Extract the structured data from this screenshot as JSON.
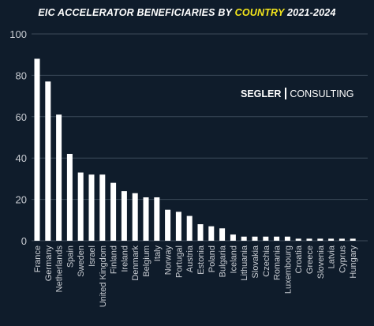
{
  "title": {
    "part1": "EIC ACCELERATOR BENEFICIARIES BY ",
    "highlight": "COUNTRY",
    "part2": " 2021-2024"
  },
  "branding": {
    "name_bold": "SEGLER",
    "name_light": "CONSULTING"
  },
  "colors": {
    "background": "#0f1c2b",
    "bar": "#ffffff",
    "grid": "#3c4a5a",
    "text": "#ffffff",
    "axis_text": "#c8ccd2",
    "title_highlight": "#f5e61b"
  },
  "chart_data": {
    "type": "bar",
    "title": "EIC ACCELERATOR BENEFICIARIES BY COUNTRY 2021-2024",
    "xlabel": "",
    "ylabel": "",
    "ylim": [
      0,
      100
    ],
    "yticks": [
      0,
      20,
      40,
      60,
      80,
      100
    ],
    "grid": true,
    "categories": [
      "France",
      "Germany",
      "Netherlands",
      "Spain",
      "Sweden",
      "Israel",
      "United Kingdom",
      "Finland",
      "Ireland",
      "Denmark",
      "Belgium",
      "Italy",
      "Norway",
      "Portugal",
      "Austria",
      "Estonia",
      "Poland",
      "Bulgaria",
      "Iceland",
      "Lithuania",
      "Slovakia",
      "Czechia",
      "Romania",
      "Luxembourg",
      "Croatia",
      "Greece",
      "Slovenia",
      "Latvia",
      "Cyprus",
      "Hungary"
    ],
    "values": [
      88,
      77,
      61,
      42,
      33,
      32,
      32,
      28,
      24,
      23,
      21,
      21,
      15,
      14,
      12,
      8,
      7,
      6,
      3,
      2,
      2,
      2,
      2,
      2,
      1,
      1,
      1,
      1,
      1,
      1
    ]
  }
}
